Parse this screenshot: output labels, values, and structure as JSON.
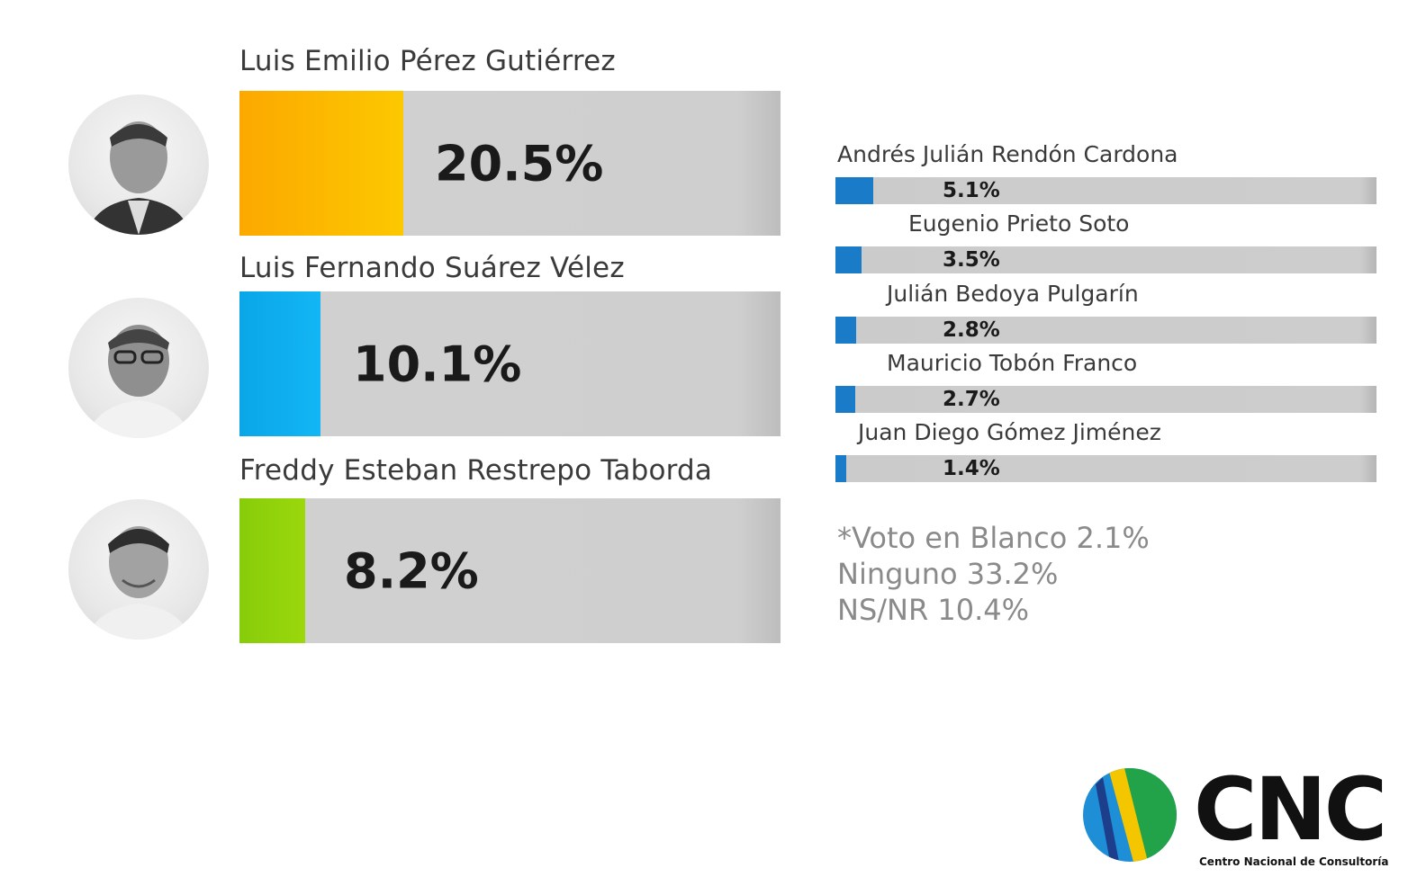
{
  "chart_data": {
    "type": "bar",
    "main_candidates": [
      {
        "name": "Luis Emilio Pérez Gutiérrez",
        "value": 20.5,
        "label": "20.5%",
        "color": "#fcb300"
      },
      {
        "name": "Luis Fernando Suárez Vélez",
        "value": 10.1,
        "label": "10.1%",
        "color": "#0ea8ea"
      },
      {
        "name": "Freddy Esteban Restrepo Taborda",
        "value": 8.2,
        "label": "8.2%",
        "color": "#8fce0a"
      }
    ],
    "other_candidates": [
      {
        "name": "Andrés Julián Rendón Cardona",
        "value": 5.1,
        "label": "5.1%"
      },
      {
        "name": "Eugenio Prieto Soto",
        "value": 3.5,
        "label": "3.5%"
      },
      {
        "name": "Julián Bedoya Pulgarín",
        "value": 2.8,
        "label": "2.8%"
      },
      {
        "name": "Mauricio Tobón Franco",
        "value": 2.7,
        "label": "2.7%"
      },
      {
        "name": "Juan Diego Gómez Jiménez",
        "value": 1.4,
        "label": "1.4%"
      }
    ],
    "other_bar_color": "#1a7bc9",
    "notes": [
      "*Voto en Blanco 2.1%",
      "Ninguno 33.2%",
      "NS/NR 10.4%"
    ]
  },
  "logo": {
    "text": "CNC",
    "subtitle": "Centro Nacional de Consultoría"
  }
}
